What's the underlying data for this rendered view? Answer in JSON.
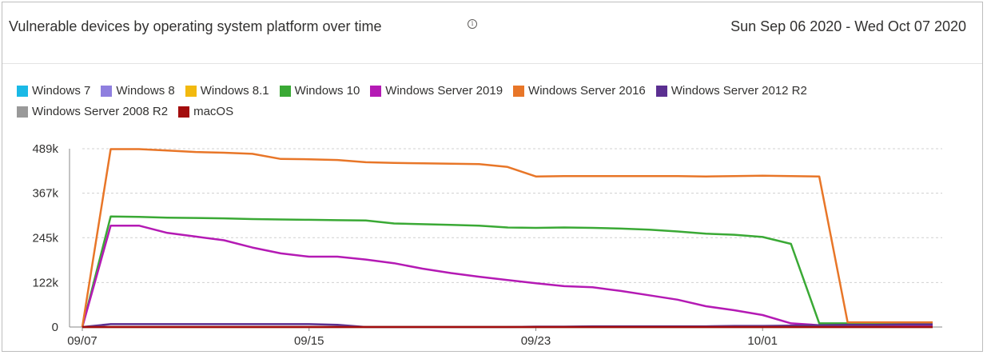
{
  "header": {
    "title": "Vulnerable devices by operating system platform over time",
    "info_icon": "info-icon",
    "date_range": "Sun Sep 06 2020 - Wed Oct 07 2020"
  },
  "colors": {
    "windows_7": "#1ab9e6",
    "windows_8": "#8f7fdf",
    "windows_8_1": "#f2b90f",
    "windows_10": "#3aa935",
    "windows_server_2019": "#b41ab4",
    "windows_server_2016": "#e87628",
    "windows_server_2012_r2": "#5b2f91",
    "windows_server_2008_r2": "#999999",
    "macos": "#a30d0d"
  },
  "chart_data": {
    "type": "line",
    "title": "Vulnerable devices by operating system platform over time",
    "x": [
      "09/07",
      "09/08",
      "09/09",
      "09/10",
      "09/11",
      "09/12",
      "09/13",
      "09/14",
      "09/15",
      "09/16",
      "09/17",
      "09/18",
      "09/19",
      "09/20",
      "09/21",
      "09/22",
      "09/23",
      "09/24",
      "09/25",
      "09/26",
      "09/27",
      "09/28",
      "09/29",
      "09/30",
      "10/01",
      "10/02",
      "10/03",
      "10/04",
      "10/05",
      "10/06",
      "10/07"
    ],
    "x_tick_labels": [
      "09/07",
      "09/15",
      "09/23",
      "10/01"
    ],
    "y_ticks": [
      0,
      122000,
      245000,
      367000,
      489000
    ],
    "y_tick_labels": [
      "0",
      "122k",
      "245k",
      "367k",
      "489k"
    ],
    "ylim": [
      0,
      489000
    ],
    "grid": true,
    "legend_position": "top-left",
    "series": [
      {
        "name": "Windows 7",
        "color_key": "windows_7",
        "values": [
          0,
          0,
          0,
          0,
          0,
          0,
          0,
          0,
          0,
          0,
          0,
          0,
          0,
          0,
          0,
          0,
          0,
          0,
          0,
          0,
          0,
          0,
          0,
          0,
          0,
          0,
          0,
          0,
          0,
          0,
          0
        ]
      },
      {
        "name": "Windows 8",
        "color_key": "windows_8",
        "values": [
          0,
          0,
          0,
          0,
          0,
          0,
          0,
          0,
          0,
          0,
          0,
          0,
          0,
          0,
          0,
          0,
          0,
          0,
          0,
          0,
          0,
          0,
          0,
          0,
          0,
          0,
          0,
          0,
          0,
          0,
          0
        ]
      },
      {
        "name": "Windows 8.1",
        "color_key": "windows_8_1",
        "values": [
          0,
          0,
          0,
          0,
          0,
          0,
          0,
          0,
          0,
          0,
          0,
          0,
          0,
          0,
          0,
          0,
          0,
          0,
          0,
          0,
          0,
          0,
          0,
          0,
          0,
          0,
          0,
          0,
          0,
          0,
          0
        ]
      },
      {
        "name": "Windows 10",
        "color_key": "windows_10",
        "values": [
          0,
          303000,
          302000,
          300000,
          299000,
          298000,
          296000,
          295000,
          294000,
          293000,
          292000,
          284000,
          282000,
          280000,
          278000,
          273000,
          272000,
          273000,
          272000,
          270000,
          267000,
          262000,
          256000,
          253000,
          247000,
          228000,
          10000,
          10000,
          10000,
          10000,
          10000
        ]
      },
      {
        "name": "Windows Server 2019",
        "color_key": "windows_server_2019",
        "values": [
          0,
          278000,
          278000,
          258000,
          248000,
          238000,
          218000,
          202000,
          193000,
          193000,
          185000,
          175000,
          160000,
          148000,
          138000,
          129000,
          120000,
          112000,
          109000,
          99000,
          87000,
          75000,
          57000,
          46000,
          33000,
          10000,
          5000,
          5000,
          5000,
          5000,
          5000
        ]
      },
      {
        "name": "Windows Server 2016",
        "color_key": "windows_server_2016",
        "values": [
          0,
          488000,
          488000,
          484000,
          480000,
          478000,
          475000,
          461000,
          460000,
          458000,
          452000,
          450000,
          449000,
          448000,
          447000,
          439000,
          413000,
          414000,
          414000,
          414000,
          414000,
          414000,
          413000,
          414000,
          415000,
          414000,
          413000,
          13000,
          13000,
          13000,
          13000
        ]
      },
      {
        "name": "Windows Server 2012 R2",
        "color_key": "windows_server_2012_r2",
        "values": [
          0,
          8000,
          8000,
          8000,
          8000,
          8000,
          8000,
          8000,
          8000,
          6000,
          0,
          0,
          0,
          0,
          0,
          0,
          1000,
          1000,
          2000,
          2000,
          2000,
          2000,
          2000,
          3000,
          3000,
          4000,
          5000,
          6000,
          6000,
          7000,
          7000
        ]
      },
      {
        "name": "Windows Server 2008 R2",
        "color_key": "windows_server_2008_r2",
        "values": [
          0,
          0,
          0,
          0,
          0,
          0,
          0,
          0,
          0,
          0,
          0,
          0,
          0,
          0,
          0,
          0,
          0,
          0,
          0,
          0,
          0,
          0,
          0,
          0,
          0,
          0,
          0,
          0,
          0,
          0,
          0
        ]
      },
      {
        "name": "macOS",
        "color_key": "macos",
        "values": [
          0,
          0,
          0,
          0,
          0,
          0,
          0,
          0,
          0,
          0,
          0,
          0,
          0,
          0,
          0,
          0,
          0,
          0,
          0,
          0,
          0,
          0,
          0,
          0,
          0,
          0,
          0,
          0,
          0,
          0,
          0
        ]
      }
    ]
  }
}
